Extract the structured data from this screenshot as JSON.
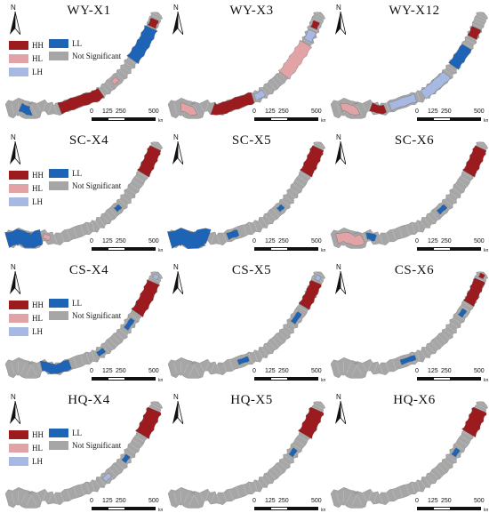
{
  "legend": {
    "items": [
      {
        "label": "HH",
        "color": "#9b1b1f"
      },
      {
        "label": "HL",
        "color": "#e2a3a6"
      },
      {
        "label": "LH",
        "color": "#a7b8e3"
      },
      {
        "label": "LL",
        "color": "#1e64b6"
      },
      {
        "label": "Not Significant",
        "color": "#a6a6a6"
      }
    ]
  },
  "north_label": "N",
  "scale": {
    "ticks": [
      "0",
      "125",
      "250",
      "500"
    ],
    "unit": "km"
  },
  "panels": [
    {
      "title": "WY-X1",
      "legend": true,
      "pattern": "wy1"
    },
    {
      "title": "WY-X3",
      "legend": false,
      "pattern": "wy3"
    },
    {
      "title": "WY-X12",
      "legend": false,
      "pattern": "wy12"
    },
    {
      "title": "SC-X4",
      "legend": true,
      "pattern": "sc4"
    },
    {
      "title": "SC-X5",
      "legend": false,
      "pattern": "sc5"
    },
    {
      "title": "SC-X6",
      "legend": false,
      "pattern": "sc6"
    },
    {
      "title": "CS-X4",
      "legend": true,
      "pattern": "cs4"
    },
    {
      "title": "CS-X5",
      "legend": false,
      "pattern": "cs5"
    },
    {
      "title": "CS-X6",
      "legend": false,
      "pattern": "cs6"
    },
    {
      "title": "HQ-X4",
      "legend": true,
      "pattern": "hq4"
    },
    {
      "title": "HQ-X5",
      "legend": false,
      "pattern": "hq5"
    },
    {
      "title": "HQ-X6",
      "legend": false,
      "pattern": "hq6"
    }
  ]
}
